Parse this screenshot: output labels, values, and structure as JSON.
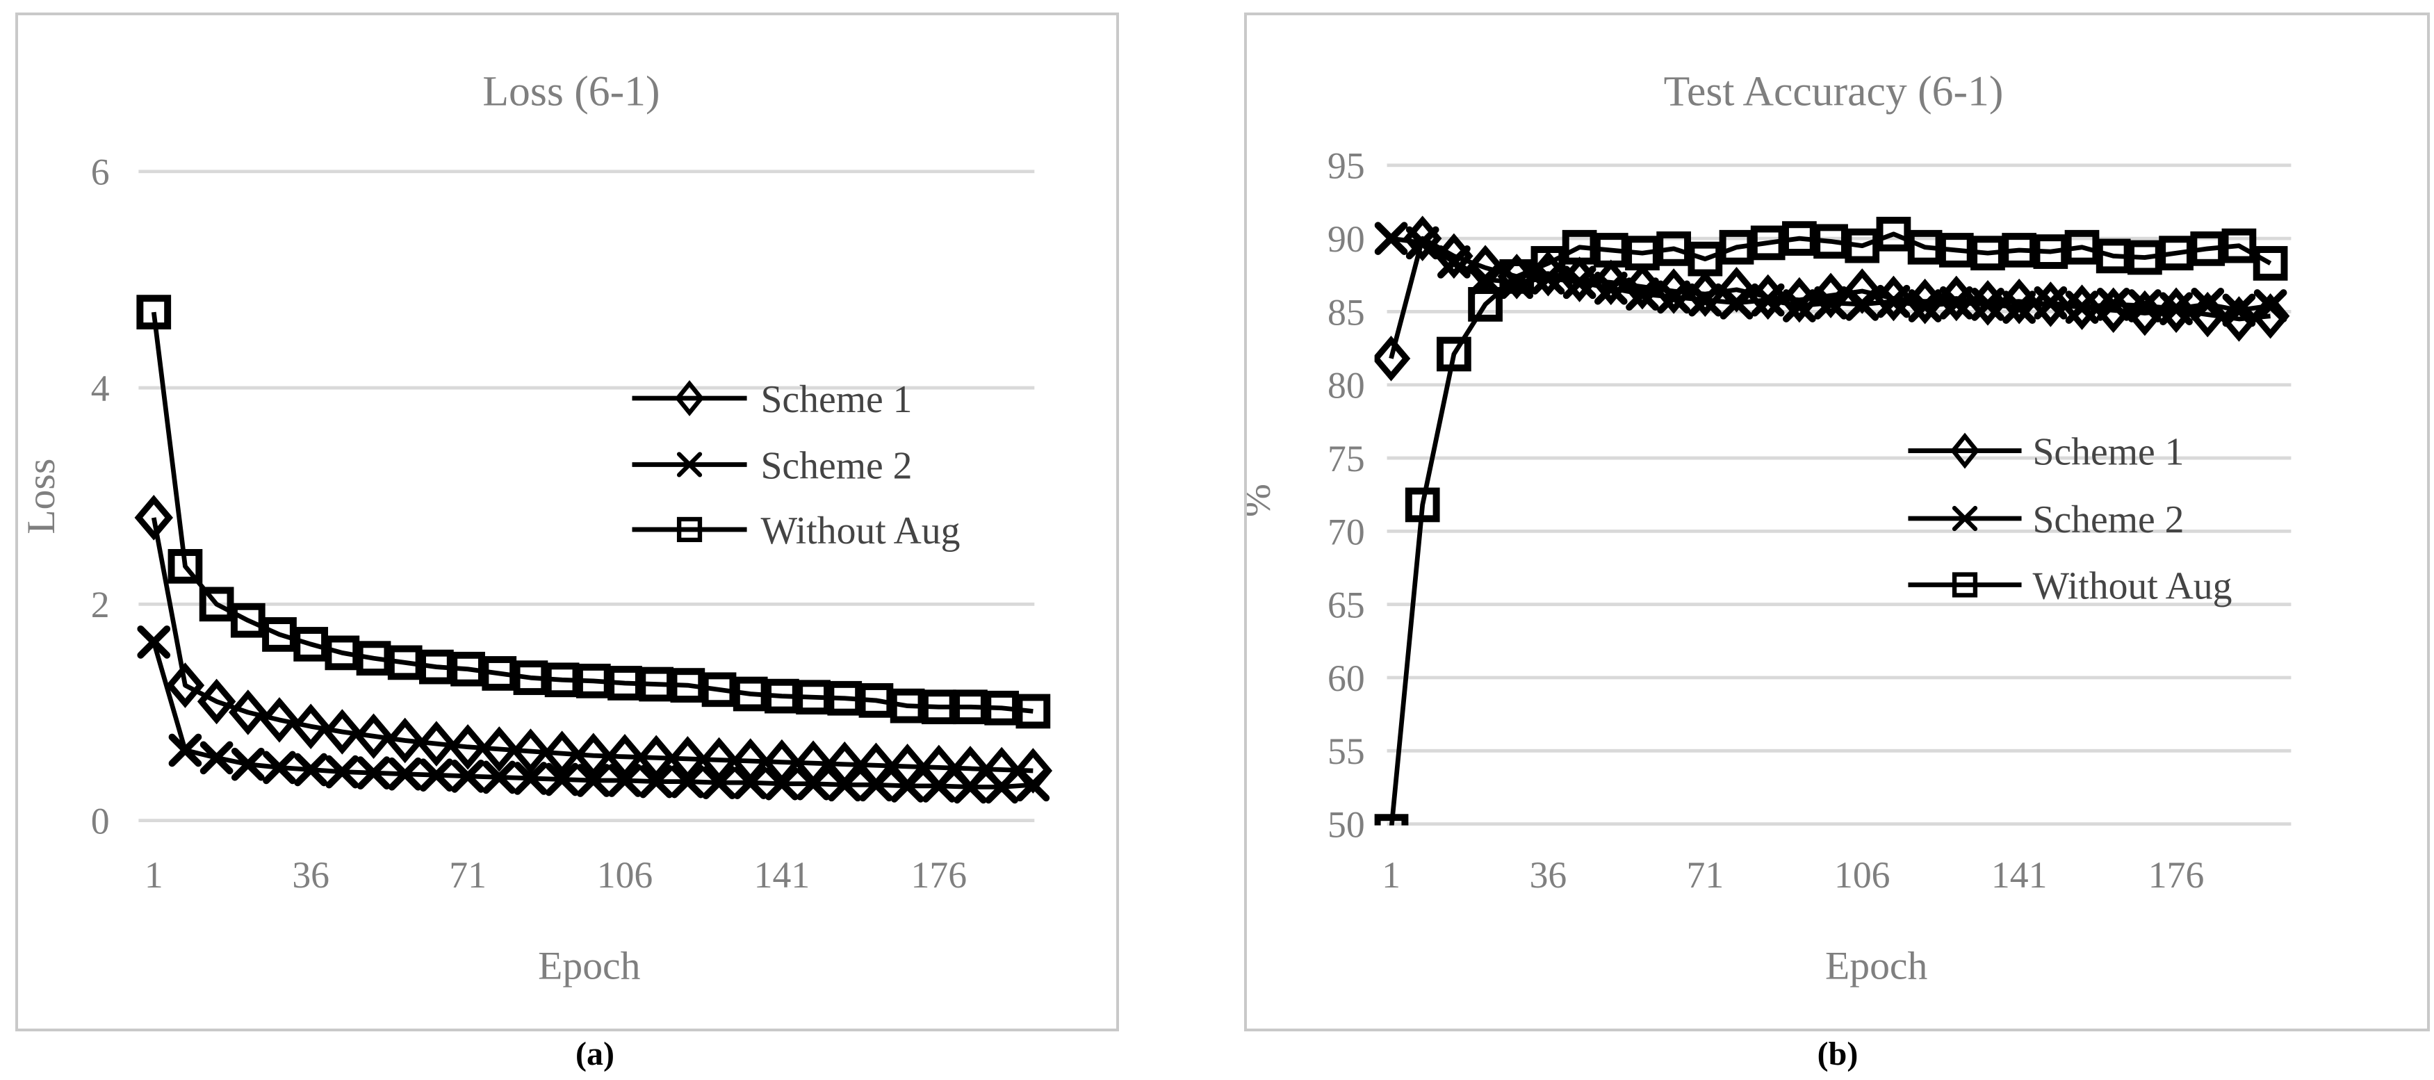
{
  "figure": {
    "captions": {
      "a": "(a)",
      "b": "(b)"
    },
    "colors": {
      "series_line": "#000000",
      "gridline": "#d9d9d9",
      "panel_border": "#c9c9c9",
      "title_text": "#7f7f7f",
      "tick_text": "#7f7f7f",
      "legend_text": "#444444",
      "background": "#ffffff"
    }
  },
  "chart_data": [
    {
      "type": "line",
      "title": "Loss (6-1)",
      "xlabel": "Epoch",
      "ylabel": "Loss",
      "grid": true,
      "legend_position": "center-right",
      "xlim": [
        1,
        197
      ],
      "ylim": [
        0,
        6
      ],
      "x_ticks": [
        1,
        36,
        71,
        106,
        141,
        176
      ],
      "y_ticks": [
        6,
        4,
        2,
        0
      ],
      "x": [
        1,
        8,
        15,
        22,
        29,
        36,
        43,
        50,
        57,
        64,
        71,
        78,
        85,
        92,
        99,
        106,
        113,
        120,
        127,
        134,
        141,
        148,
        155,
        162,
        169,
        176,
        183,
        190,
        197
      ],
      "series": [
        {
          "name": "Scheme 1",
          "marker": "diamond",
          "values": [
            2.8,
            1.25,
            1.1,
            1.0,
            0.93,
            0.87,
            0.82,
            0.78,
            0.74,
            0.71,
            0.68,
            0.66,
            0.64,
            0.62,
            0.6,
            0.59,
            0.58,
            0.57,
            0.56,
            0.55,
            0.54,
            0.53,
            0.52,
            0.51,
            0.5,
            0.49,
            0.48,
            0.47,
            0.46
          ]
        },
        {
          "name": "Scheme 2",
          "marker": "x",
          "values": [
            1.65,
            0.65,
            0.58,
            0.52,
            0.49,
            0.47,
            0.45,
            0.44,
            0.43,
            0.42,
            0.41,
            0.4,
            0.39,
            0.38,
            0.37,
            0.37,
            0.36,
            0.36,
            0.35,
            0.35,
            0.34,
            0.34,
            0.33,
            0.33,
            0.32,
            0.32,
            0.31,
            0.31,
            0.33
          ]
        },
        {
          "name": "Without Aug",
          "marker": "square",
          "values": [
            4.7,
            2.35,
            2.0,
            1.85,
            1.72,
            1.63,
            1.55,
            1.5,
            1.46,
            1.42,
            1.4,
            1.36,
            1.32,
            1.3,
            1.29,
            1.27,
            1.26,
            1.25,
            1.21,
            1.17,
            1.15,
            1.14,
            1.13,
            1.11,
            1.06,
            1.05,
            1.05,
            1.04,
            1.01
          ]
        }
      ]
    },
    {
      "type": "line",
      "title": "Test Accuracy (6-1)",
      "xlabel": "Epoch",
      "ylabel": "%",
      "grid": true,
      "legend_position": "lower-right",
      "xlim": [
        1,
        197
      ],
      "ylim": [
        50,
        95
      ],
      "x_ticks": [
        1,
        36,
        71,
        106,
        141,
        176
      ],
      "y_ticks": [
        95,
        90,
        85,
        80,
        75,
        70,
        65,
        60,
        55,
        50
      ],
      "x": [
        1,
        8,
        15,
        22,
        29,
        36,
        43,
        50,
        57,
        64,
        71,
        78,
        85,
        92,
        99,
        106,
        113,
        120,
        127,
        134,
        141,
        148,
        155,
        162,
        169,
        176,
        183,
        190,
        197
      ],
      "series": [
        {
          "name": "Scheme 1",
          "marker": "diamond",
          "values": [
            81.8,
            90.0,
            88.8,
            88.0,
            87.4,
            87.6,
            87.2,
            87.0,
            86.7,
            86.4,
            86.2,
            86.5,
            86.0,
            85.8,
            86.1,
            86.4,
            85.9,
            85.7,
            85.9,
            85.6,
            85.7,
            85.5,
            85.3,
            85.1,
            84.9,
            85.1,
            84.8,
            84.5,
            84.7
          ]
        },
        {
          "name": "Scheme 2",
          "marker": "x",
          "values": [
            90.0,
            89.7,
            88.4,
            87.2,
            87.0,
            87.3,
            87.0,
            86.6,
            86.2,
            86.0,
            85.8,
            85.6,
            85.8,
            85.4,
            85.6,
            85.5,
            85.7,
            85.4,
            85.6,
            85.5,
            85.3,
            85.6,
            85.3,
            85.5,
            85.4,
            85.2,
            85.5,
            85.1,
            85.4
          ]
        },
        {
          "name": "Without Aug",
          "marker": "square",
          "values": [
            49.5,
            71.8,
            82.1,
            85.5,
            87.4,
            88.3,
            89.4,
            89.2,
            89.0,
            89.3,
            88.6,
            89.4,
            89.7,
            90.0,
            89.8,
            89.5,
            90.3,
            89.4,
            89.2,
            89.0,
            89.2,
            89.1,
            89.4,
            88.8,
            88.7,
            89.0,
            89.3,
            89.5,
            88.3
          ]
        }
      ]
    }
  ]
}
